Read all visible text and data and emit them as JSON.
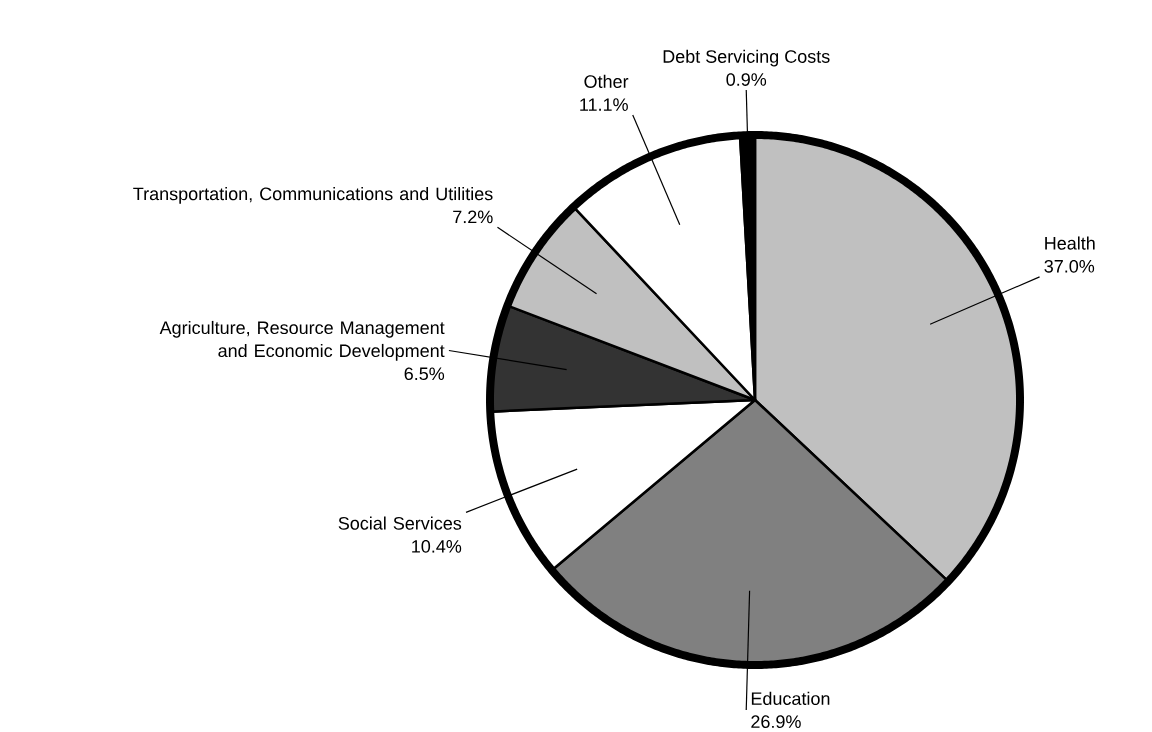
{
  "chart_data": {
    "type": "pie",
    "categories": [
      "Health",
      "Education",
      "Social Services",
      "Agriculture, Resource Management and Economic Development",
      "Transportation, Communications and Utilities",
      "Other",
      "Debt Servicing Costs"
    ],
    "values": [
      37.0,
      26.9,
      10.4,
      6.5,
      7.2,
      11.1,
      0.9
    ],
    "value_labels": [
      "37.0%",
      "26.9%",
      "10.4%",
      "6.5%",
      "7.2%",
      "11.1%",
      "0.9%"
    ],
    "colors": [
      "#c0c0c0",
      "#808080",
      "#ffffff",
      "#333333",
      "#c0c0c0",
      "#ffffff",
      "#000000"
    ]
  }
}
